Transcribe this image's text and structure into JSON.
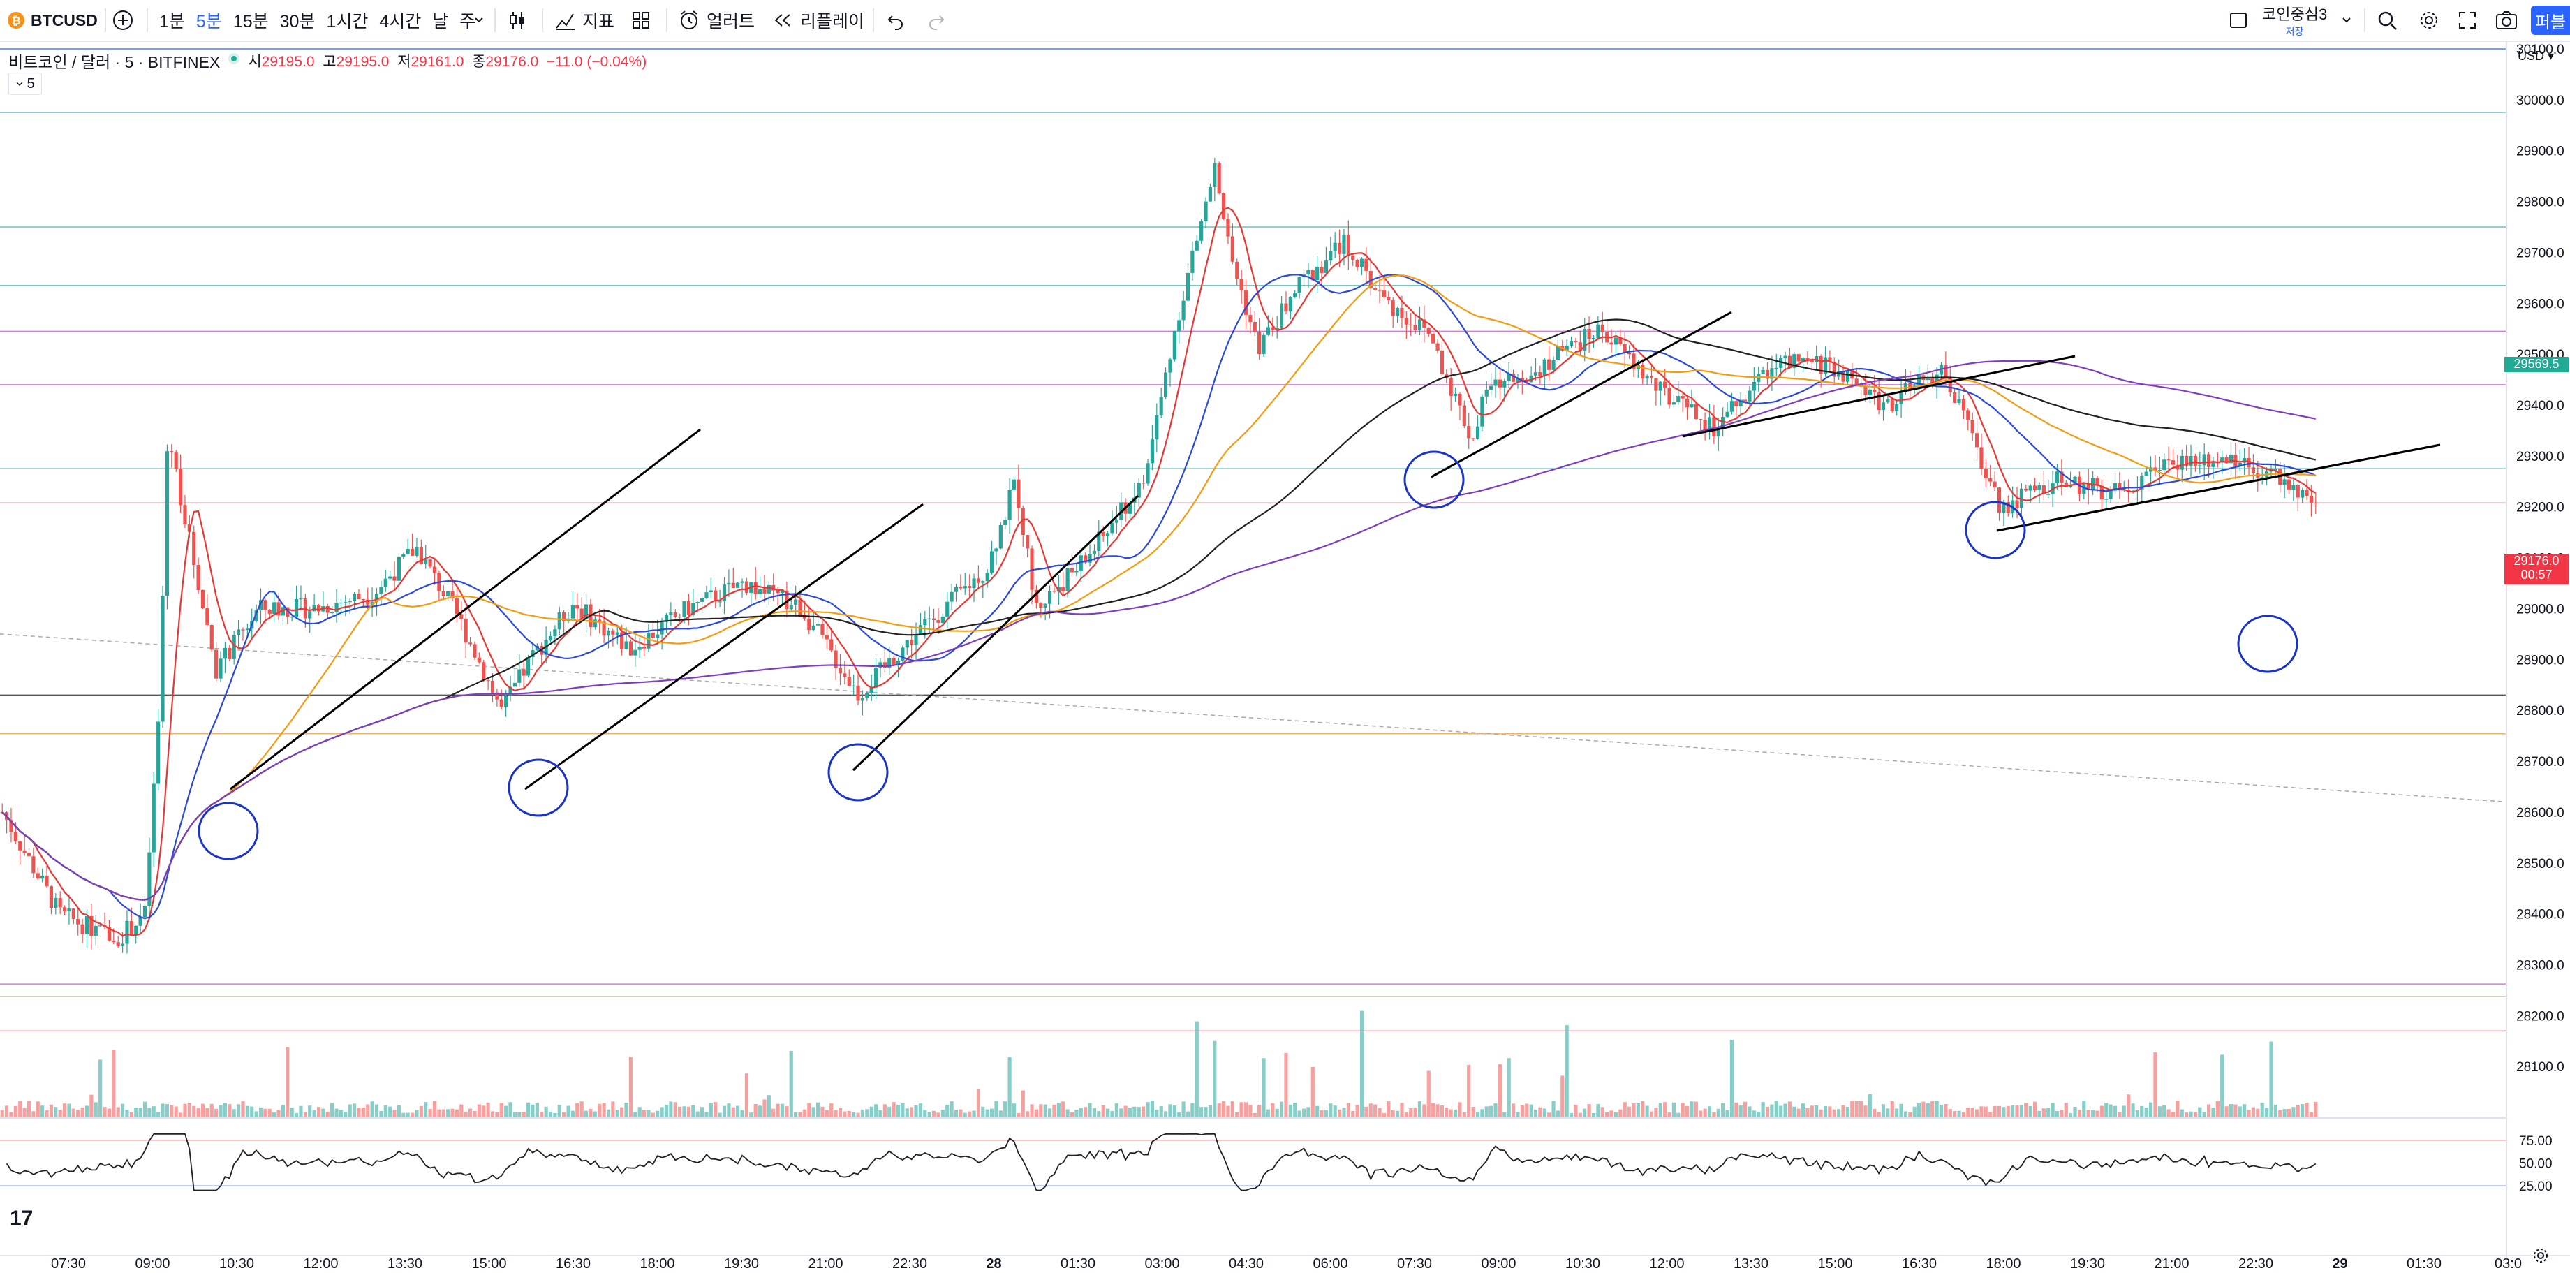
{
  "toolbar": {
    "symbol": "BTCUSD",
    "intervals": [
      "1분",
      "5분",
      "15분",
      "30분",
      "1시간",
      "4시간",
      "날",
      "주"
    ],
    "active_interval": "5분",
    "indicators_label": "지표",
    "alert_label": "얼러트",
    "replay_label": "리플레이",
    "layout_name": "코인중심3",
    "layout_status": "저장",
    "publish_label": "퍼블"
  },
  "legend": {
    "title": "비트코인 / 달러 · 5 · BITFINEX",
    "open_label": "시",
    "open": "29195.0",
    "high_label": "고",
    "high": "29195.0",
    "low_label": "저",
    "low": "29161.0",
    "close_label": "종",
    "close": "29176.0",
    "change": "−11.0 (−0.04%)",
    "collapse_count": "5"
  },
  "price_axis": {
    "currency": "USD",
    "labels": [
      "30100.0",
      "30000.0",
      "29900.0",
      "29800.0",
      "29700.0",
      "29600.0",
      "29500.0",
      "29400.0",
      "29300.0",
      "29200.0",
      "29100.0",
      "29000.0",
      "28900.0",
      "28800.0",
      "28700.0",
      "28600.0",
      "28500.0",
      "28400.0",
      "28300.0",
      "28200.0",
      "28100.0"
    ],
    "badge_ref": "29569.5",
    "badge_last": "29176.0",
    "badge_countdown": "00:57"
  },
  "oscillator_axis": {
    "labels": [
      "75.00",
      "50.00",
      "25.00"
    ]
  },
  "time_axis": {
    "labels": [
      "07:30",
      "09:00",
      "10:30",
      "12:00",
      "13:30",
      "15:00",
      "16:30",
      "18:00",
      "19:30",
      "21:00",
      "22:30",
      "28",
      "01:30",
      "03:00",
      "04:30",
      "06:00",
      "07:30",
      "09:00",
      "10:30",
      "12:00",
      "13:30",
      "15:00",
      "16:30",
      "18:00",
      "19:30",
      "21:00",
      "22:30",
      "29",
      "01:30",
      "03:0"
    ]
  },
  "watermark": "17",
  "colors": {
    "up": "#26a69a",
    "down": "#ef5350",
    "accent": "#2962ff",
    "ma_red": "#e53935",
    "ma_blue": "#2b4bd6",
    "ma_orange": "#f39c12",
    "ma_black": "#222222",
    "ma_purple": "#7e3fbf",
    "hline_teal": "#4db6ac",
    "hline_purple": "#ce7fd8",
    "badge_teal": "#22ab94",
    "badge_red": "#f23645"
  }
}
